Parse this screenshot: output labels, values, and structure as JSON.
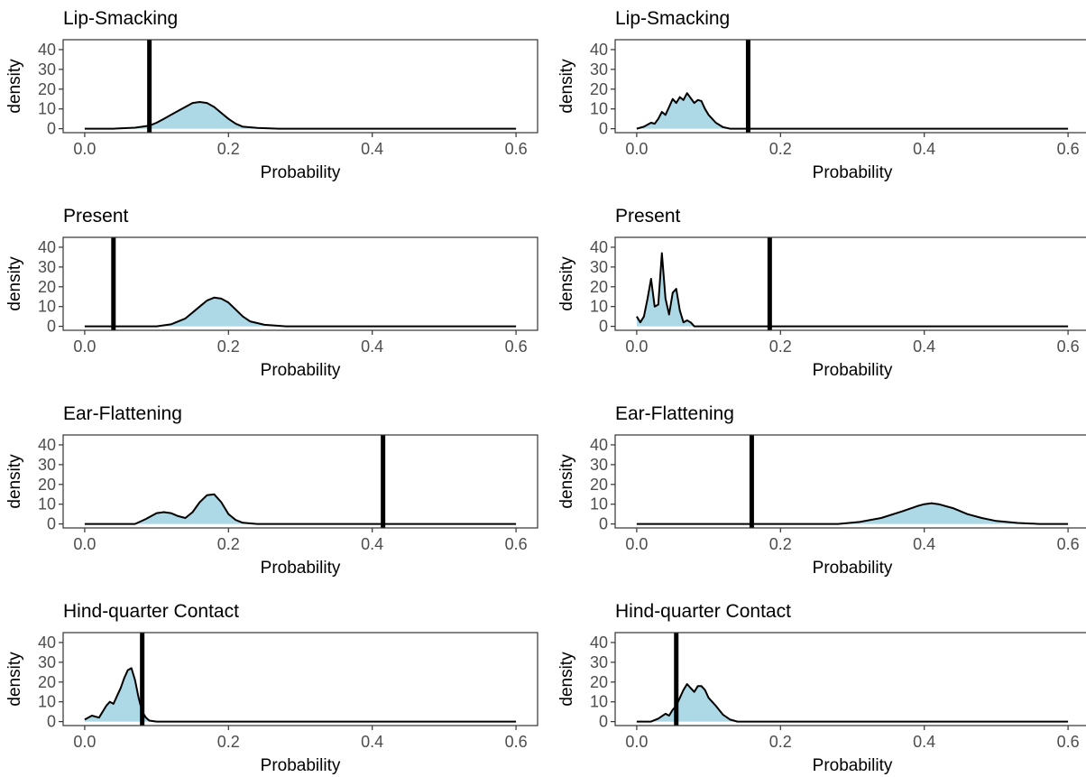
{
  "colors": {
    "fill": "#add8e6",
    "line": "#000000",
    "observed": "#000000",
    "tick_text": "#4d4d4d",
    "axis": "#333333"
  },
  "chart_data": [
    {
      "type": "area",
      "title": "Lip-Smacking",
      "xlabel": "Probability",
      "ylabel": "density",
      "xlim": [
        -0.03,
        0.63
      ],
      "ylim": [
        -2,
        45
      ],
      "x_ticks": [
        "0.0",
        "0.2",
        "0.4",
        "0.6"
      ],
      "y_ticks": [
        "0",
        "10",
        "20",
        "30",
        "40"
      ],
      "observed": 0.09,
      "x": [
        0,
        0.04,
        0.07,
        0.09,
        0.1,
        0.11,
        0.12,
        0.13,
        0.14,
        0.15,
        0.16,
        0.17,
        0.18,
        0.19,
        0.2,
        0.21,
        0.22,
        0.24,
        0.27,
        0.6
      ],
      "y": [
        0,
        0,
        0.5,
        1.5,
        3,
        5,
        7,
        9,
        11,
        13,
        13.5,
        13,
        11,
        8,
        5,
        2.5,
        1,
        0.4,
        0,
        0
      ]
    },
    {
      "type": "area",
      "title": "Lip-Smacking",
      "xlabel": "Probability",
      "ylabel": "density",
      "xlim": [
        -0.03,
        0.63
      ],
      "ylim": [
        -2,
        45
      ],
      "x_ticks": [
        "0.0",
        "0.2",
        "0.4",
        "0.6"
      ],
      "y_ticks": [
        "0",
        "10",
        "20",
        "30",
        "40"
      ],
      "observed": 0.155,
      "x": [
        0,
        0.01,
        0.02,
        0.025,
        0.03,
        0.035,
        0.04,
        0.045,
        0.05,
        0.055,
        0.06,
        0.065,
        0.07,
        0.075,
        0.08,
        0.085,
        0.09,
        0.095,
        0.1,
        0.11,
        0.12,
        0.13,
        0.6
      ],
      "y": [
        0,
        1,
        3,
        2.5,
        5,
        8.5,
        7,
        11,
        15,
        13,
        16,
        14.5,
        18,
        15.5,
        13,
        14.5,
        14,
        10,
        7,
        3,
        0.8,
        0,
        0
      ]
    },
    {
      "type": "area",
      "title": "Present",
      "xlabel": "Probability",
      "ylabel": "density",
      "xlim": [
        -0.03,
        0.63
      ],
      "ylim": [
        -2,
        45
      ],
      "x_ticks": [
        "0.0",
        "0.2",
        "0.4",
        "0.6"
      ],
      "y_ticks": [
        "0",
        "10",
        "20",
        "30",
        "40"
      ],
      "observed": 0.04,
      "x": [
        0,
        0.1,
        0.12,
        0.14,
        0.15,
        0.16,
        0.17,
        0.18,
        0.19,
        0.2,
        0.21,
        0.22,
        0.23,
        0.25,
        0.28,
        0.6
      ],
      "y": [
        0,
        0,
        1,
        4,
        7,
        10,
        13,
        14.5,
        14,
        12,
        8.5,
        5,
        2.5,
        0.8,
        0,
        0
      ]
    },
    {
      "type": "area",
      "title": "Present",
      "xlabel": "Probability",
      "ylabel": "density",
      "xlim": [
        -0.03,
        0.63
      ],
      "ylim": [
        -2,
        45
      ],
      "x_ticks": [
        "0.0",
        "0.2",
        "0.4",
        "0.6"
      ],
      "y_ticks": [
        "0",
        "10",
        "20",
        "30",
        "40"
      ],
      "observed": 0.185,
      "x": [
        0,
        0.005,
        0.01,
        0.015,
        0.02,
        0.025,
        0.03,
        0.035,
        0.04,
        0.045,
        0.05,
        0.055,
        0.06,
        0.065,
        0.07,
        0.075,
        0.08,
        0.6
      ],
      "y": [
        5,
        2,
        5,
        14,
        24,
        10,
        11,
        37,
        14,
        6,
        17,
        19,
        8,
        2,
        3,
        2,
        0,
        0
      ]
    },
    {
      "type": "area",
      "title": "Ear-Flattening",
      "xlabel": "Probability",
      "ylabel": "density",
      "xlim": [
        -0.03,
        0.63
      ],
      "ylim": [
        -2,
        45
      ],
      "x_ticks": [
        "0.0",
        "0.2",
        "0.4",
        "0.6"
      ],
      "y_ticks": [
        "0",
        "10",
        "20",
        "30",
        "40"
      ],
      "observed": 0.415,
      "x": [
        0,
        0.07,
        0.085,
        0.1,
        0.11,
        0.12,
        0.13,
        0.14,
        0.15,
        0.16,
        0.17,
        0.18,
        0.19,
        0.2,
        0.21,
        0.22,
        0.24,
        0.6
      ],
      "y": [
        0,
        0,
        2.5,
        5.5,
        6,
        5.5,
        4,
        3,
        6,
        11,
        14.5,
        15,
        11,
        5,
        2,
        0.6,
        0,
        0
      ]
    },
    {
      "type": "area",
      "title": "Ear-Flattening",
      "xlabel": "Probability",
      "ylabel": "density",
      "xlim": [
        -0.03,
        0.63
      ],
      "ylim": [
        -2,
        45
      ],
      "x_ticks": [
        "0.0",
        "0.2",
        "0.4",
        "0.6"
      ],
      "y_ticks": [
        "0",
        "10",
        "20",
        "30",
        "40"
      ],
      "observed": 0.16,
      "x": [
        0,
        0.28,
        0.31,
        0.34,
        0.37,
        0.39,
        0.4,
        0.41,
        0.42,
        0.44,
        0.46,
        0.48,
        0.5,
        0.53,
        0.56,
        0.6
      ],
      "y": [
        0,
        0,
        1,
        3,
        6.5,
        9,
        10,
        10.5,
        10,
        8,
        5,
        3,
        1.5,
        0.5,
        0,
        0
      ]
    },
    {
      "type": "area",
      "title": "Hind-quarter Contact",
      "xlabel": "Probability",
      "ylabel": "density",
      "xlim": [
        -0.03,
        0.63
      ],
      "ylim": [
        -2,
        45
      ],
      "x_ticks": [
        "0.0",
        "0.2",
        "0.4",
        "0.6"
      ],
      "y_ticks": [
        "0",
        "10",
        "20",
        "30",
        "40"
      ],
      "observed": 0.08,
      "x": [
        0,
        0.01,
        0.02,
        0.03,
        0.035,
        0.04,
        0.045,
        0.05,
        0.055,
        0.06,
        0.065,
        0.07,
        0.075,
        0.08,
        0.085,
        0.09,
        0.1,
        0.6
      ],
      "y": [
        1,
        3,
        2,
        8,
        10,
        9,
        13,
        17,
        22,
        26,
        27,
        21,
        12,
        5,
        2,
        0.5,
        0,
        0
      ]
    },
    {
      "type": "area",
      "title": "Hind-quarter Contact",
      "xlabel": "Probability",
      "ylabel": "density",
      "xlim": [
        -0.03,
        0.63
      ],
      "ylim": [
        -2,
        45
      ],
      "x_ticks": [
        "0.0",
        "0.2",
        "0.4",
        "0.6"
      ],
      "y_ticks": [
        "0",
        "10",
        "20",
        "30",
        "40"
      ],
      "observed": 0.055,
      "x": [
        0,
        0.02,
        0.03,
        0.04,
        0.045,
        0.05,
        0.055,
        0.06,
        0.065,
        0.07,
        0.075,
        0.08,
        0.085,
        0.09,
        0.095,
        0.1,
        0.11,
        0.12,
        0.13,
        0.14,
        0.6
      ],
      "y": [
        0,
        0,
        1.5,
        4,
        3,
        6,
        8,
        12,
        16,
        19,
        17,
        15,
        18,
        18,
        16,
        12,
        8,
        3.5,
        1,
        0,
        0
      ]
    }
  ]
}
